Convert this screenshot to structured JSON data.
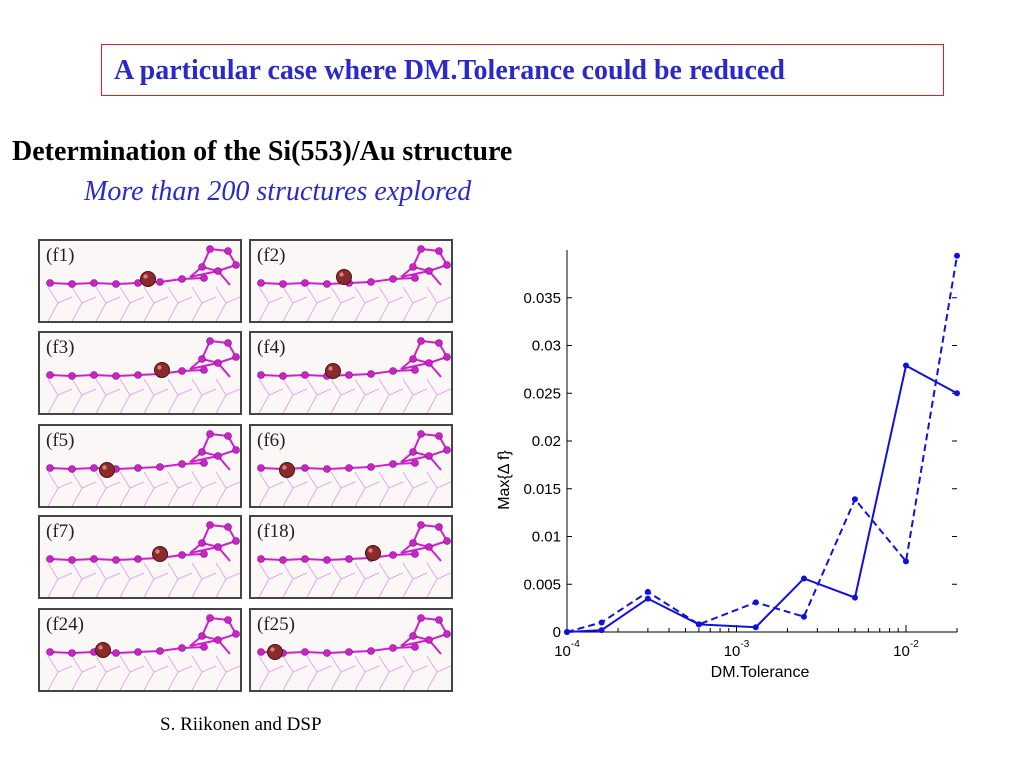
{
  "title": "A particular case where DM.Tolerance could be reduced",
  "heading": "Determination of the Si(553)/Au structure",
  "subheading": "More than 200 structures explored",
  "credit": "S. Riikonen and DSP",
  "panels": [
    {
      "label": "(f1)"
    },
    {
      "label": "(f2)"
    },
    {
      "label": "(f3)"
    },
    {
      "label": "(f4)"
    },
    {
      "label": "(f5)"
    },
    {
      "label": "(f6)"
    },
    {
      "label": "(f7)"
    },
    {
      "label": "(f18)"
    },
    {
      "label": "(f24)"
    },
    {
      "label": "(f25)"
    }
  ],
  "colors": {
    "title": "#2a2acc",
    "title_border": "#e02020",
    "series": "#1111dd",
    "atom_si": "#cc22cc",
    "atom_au": "#8b2a2a"
  },
  "chart_data": {
    "type": "line",
    "xlabel": "DM.Tolerance",
    "ylabel": "Max{Δ f}",
    "xscale": "log",
    "xlim": [
      0.0001,
      0.02
    ],
    "ylim": [
      0,
      0.04
    ],
    "x_ticks": [
      {
        "value": 0.0001,
        "base": "10",
        "exp": "-4"
      },
      {
        "value": 0.001,
        "base": "10",
        "exp": "-3"
      },
      {
        "value": 0.01,
        "base": "10",
        "exp": "-2"
      }
    ],
    "y_ticks": [
      0,
      0.005,
      0.01,
      0.015,
      0.02,
      0.025,
      0.03,
      0.035
    ],
    "y_tick_labels": [
      "0",
      "0.005",
      "0.01",
      "0.015",
      "0.02",
      "0.025",
      "0.03",
      "0.035"
    ],
    "grid": false,
    "series": [
      {
        "style": "solid",
        "x": [
          0.0001,
          0.00016,
          0.0003,
          0.0006,
          0.0013,
          0.0025,
          0.005,
          0.01,
          0.02
        ],
        "y": [
          0.0,
          0.0002,
          0.0035,
          0.0008,
          0.0005,
          0.0056,
          0.0036,
          0.0279,
          0.025
        ]
      },
      {
        "style": "dashed",
        "x": [
          0.0001,
          0.00016,
          0.0003,
          0.0006,
          0.0013,
          0.0025,
          0.005,
          0.01,
          0.02
        ],
        "y": [
          0.0,
          0.001,
          0.0042,
          0.0008,
          0.0031,
          0.0016,
          0.0139,
          0.0074,
          0.0394
        ]
      }
    ]
  }
}
